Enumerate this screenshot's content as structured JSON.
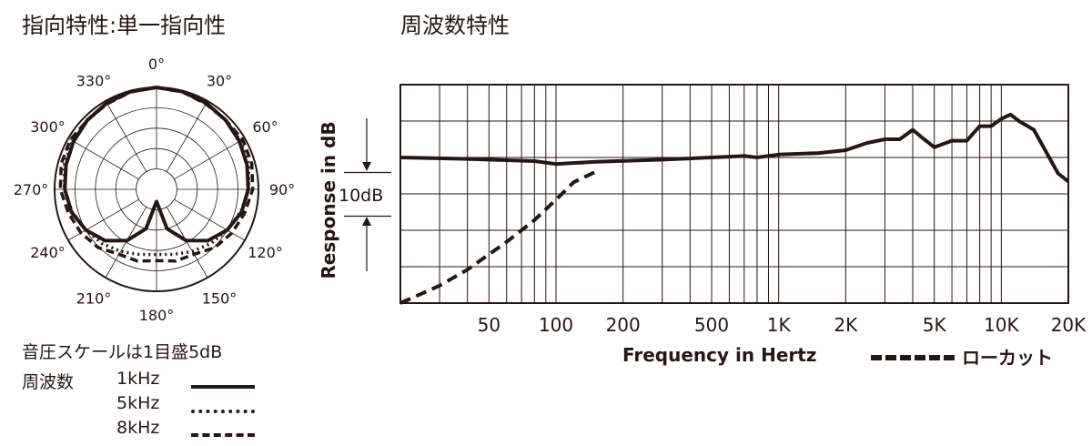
{
  "polar": {
    "title": "指向特性:単一指向性",
    "angle_labels": [
      "0°",
      "30°",
      "60°",
      "90°",
      "120°",
      "150°",
      "180°",
      "210°",
      "240°",
      "270°",
      "300°",
      "330°"
    ],
    "scale_note": "音圧スケールは1目盛5dB",
    "legend_title": "周波数",
    "legend": [
      {
        "label": "1kHz",
        "style": "solid"
      },
      {
        "label": "5kHz",
        "style": "dotted"
      },
      {
        "label": "8kHz",
        "style": "dashed"
      }
    ]
  },
  "frequency": {
    "title": "周波数特性",
    "ylabel": "Response in dB",
    "scale_label": "10dB",
    "xlabel": "Frequency in Hertz",
    "lowcut_label": "ローカット"
  },
  "chart_data": [
    {
      "type": "polar",
      "angles_deg": [
        0,
        30,
        60,
        90,
        120,
        150,
        180,
        210,
        240,
        270,
        300,
        330
      ],
      "rings": 5,
      "series": [
        {
          "name": "1kHz",
          "style": "solid",
          "angle_deg": [
            0,
            15,
            30,
            45,
            60,
            75,
            90,
            105,
            120,
            135,
            150,
            165,
            180,
            195,
            210,
            225,
            240,
            255,
            270,
            285,
            300,
            315,
            330,
            345
          ],
          "level_db": [
            0,
            -0.2,
            -0.6,
            -1.0,
            -1.5,
            -2.0,
            -2.5,
            -3.4,
            -5.0,
            -7.2,
            -10.5,
            -15.0,
            -22.0,
            -15.0,
            -10.5,
            -7.2,
            -5.0,
            -3.4,
            -2.5,
            -2.0,
            -1.5,
            -1.0,
            -0.6,
            -0.2
          ]
        },
        {
          "name": "5kHz",
          "style": "dotted",
          "angle_deg": [
            0,
            15,
            30,
            45,
            60,
            75,
            90,
            105,
            120,
            135,
            150,
            165,
            180,
            195,
            210,
            225,
            240,
            255,
            270,
            285,
            300,
            315,
            330,
            345
          ],
          "level_db": [
            0,
            -0.2,
            -0.6,
            -1.0,
            -1.2,
            -1.6,
            -2.4,
            -3.6,
            -5.0,
            -6.2,
            -7.4,
            -8.5,
            -9.0,
            -8.5,
            -7.4,
            -6.2,
            -5.0,
            -3.6,
            -2.4,
            -1.6,
            -1.2,
            -1.0,
            -0.6,
            -0.2
          ]
        },
        {
          "name": "8kHz",
          "style": "dashed",
          "angle_deg": [
            0,
            15,
            30,
            45,
            60,
            75,
            90,
            105,
            120,
            135,
            150,
            165,
            180,
            195,
            210,
            225,
            240,
            255,
            270,
            285,
            300,
            315,
            330,
            345
          ],
          "level_db": [
            0,
            -0.3,
            -0.8,
            -1.0,
            -0.6,
            -0.8,
            -1.4,
            -2.6,
            -3.6,
            -4.8,
            -6.6,
            -6.8,
            -7.5,
            -6.8,
            -6.6,
            -4.8,
            -3.6,
            -2.6,
            -1.4,
            -0.8,
            -0.6,
            -1.0,
            -0.8,
            -0.3
          ]
        }
      ]
    },
    {
      "type": "line",
      "x_scale": "log",
      "xlim": [
        20,
        20000
      ],
      "x_tick_values": [
        50,
        100,
        200,
        500,
        1000,
        2000,
        5000,
        10000,
        20000
      ],
      "x_tick_labels": [
        "50",
        "100",
        "200",
        "500",
        "1K",
        "2K",
        "5K",
        "10K",
        "20K"
      ],
      "grid": true,
      "ylim_db": [
        -20,
        10
      ],
      "series": [
        {
          "name": "response",
          "style": "solid",
          "x": [
            20,
            40,
            80,
            100,
            150,
            300,
            700,
            800,
            1000,
            1500,
            2000,
            2500,
            3000,
            3500,
            4000,
            4500,
            5000,
            6000,
            7000,
            8000,
            9000,
            10000,
            11000,
            12000,
            14000,
            16000,
            18000,
            20000
          ],
          "y": [
            0,
            -0.2,
            -0.5,
            -0.9,
            -0.6,
            -0.3,
            0.2,
            0,
            0.4,
            0.6,
            1.0,
            2.0,
            2.5,
            2.5,
            3.8,
            2.5,
            1.4,
            2.3,
            2.3,
            4.3,
            4.3,
            5.3,
            5.9,
            5.0,
            3.8,
            0.6,
            -2.2,
            -3.3
          ]
        },
        {
          "name": "ローカット",
          "style": "dashed",
          "x": [
            20,
            30,
            40,
            60,
            80,
            100,
            120,
            150
          ],
          "y": [
            -20.0,
            -17.6,
            -15.4,
            -11.6,
            -8.6,
            -5.8,
            -3.4,
            -2.0
          ]
        }
      ]
    }
  ]
}
